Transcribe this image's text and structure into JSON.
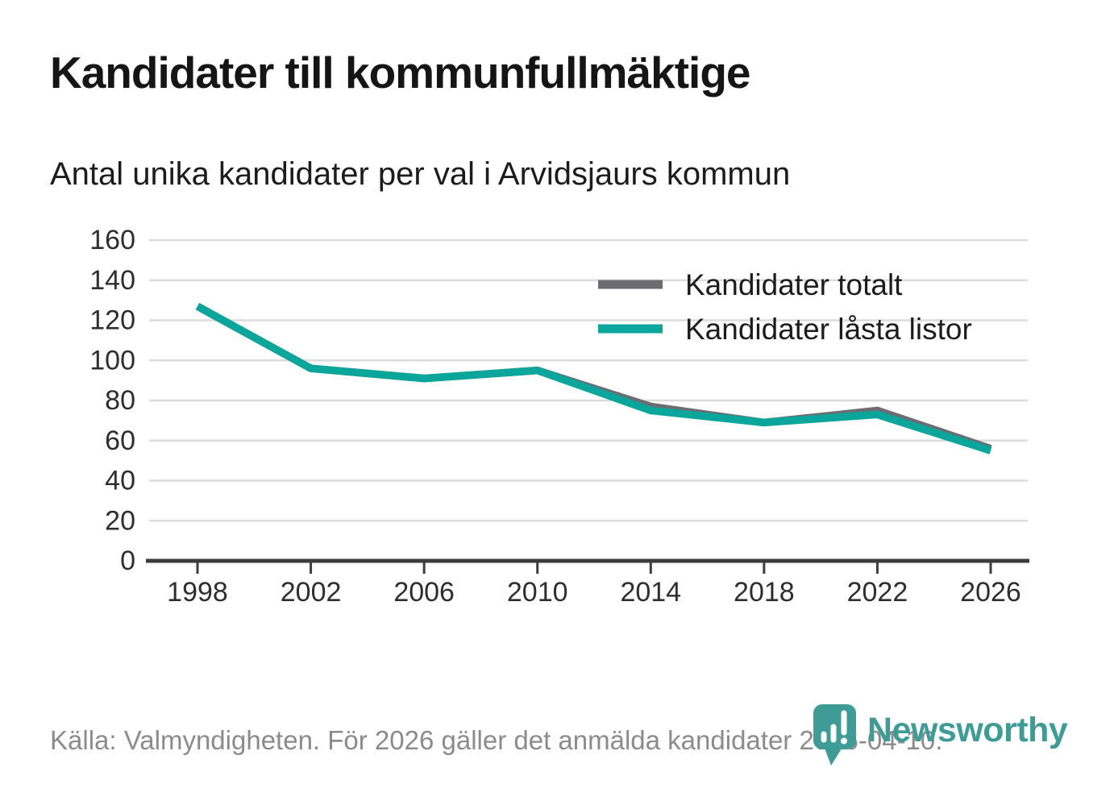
{
  "header": {
    "title": "Kandidater till kommunfullmäktige",
    "subtitle": "Antal unika kandidater per val i Arvidsjaurs kommun"
  },
  "chart_data": {
    "type": "line",
    "x": [
      1998,
      2002,
      2006,
      2010,
      2014,
      2018,
      2022,
      2026
    ],
    "series": [
      {
        "name": "Kandidater totalt",
        "color": "#6c6c71",
        "values": [
          127,
          96,
          91,
          95,
          77,
          69,
          75,
          56
        ]
      },
      {
        "name": "Kandidater låsta listor",
        "color": "#0aa59b",
        "values": [
          127,
          96,
          91,
          95,
          75,
          69,
          73,
          55
        ]
      }
    ],
    "ylim": [
      0,
      160
    ],
    "ytick_step": 20,
    "grid": true,
    "legend_position": "top-right"
  },
  "footer": {
    "source": "Källa: Valmyndigheten. För 2026 gäller det anmälda kandidater 2026-04-10.",
    "brand": "Newsworthy"
  },
  "colors": {
    "grid": "#dcdcdc",
    "axis": "#3d3d3d",
    "tick_label": "#2e2e2e",
    "legend_text": "#1c1c1c",
    "muted_text": "#8b8b8b",
    "logo_teal": "#3f9b96"
  }
}
